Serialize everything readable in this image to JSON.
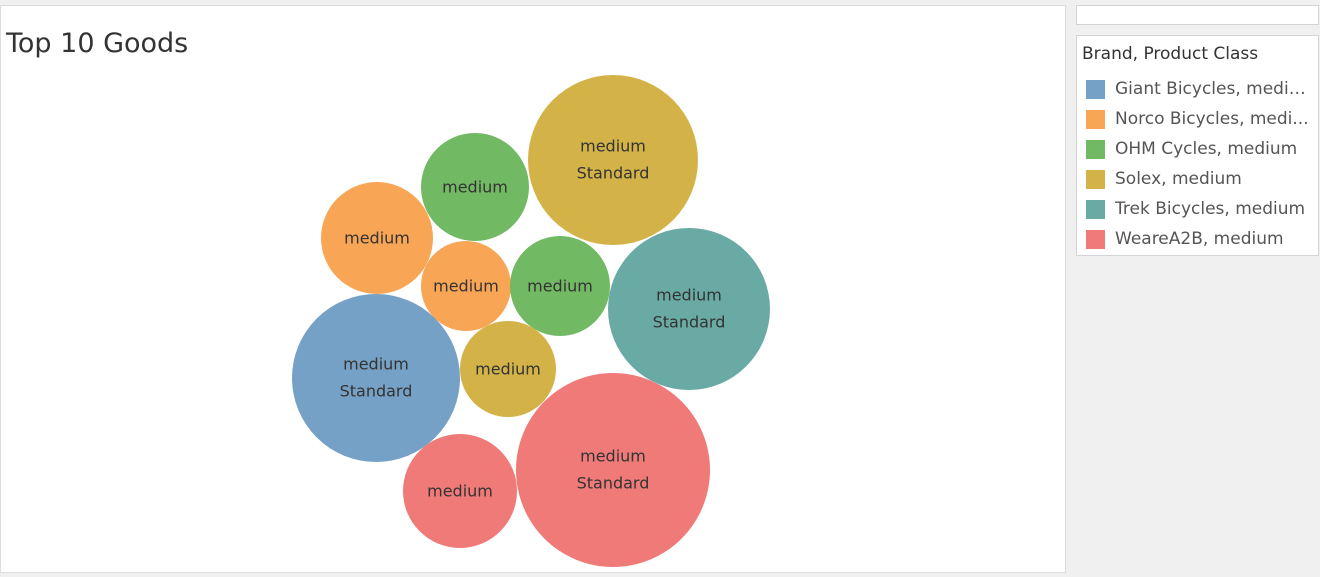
{
  "chart_data": {
    "type": "bubble",
    "title": "Top 10 Goods",
    "legend": {
      "title": "Brand, Product Class",
      "placement": "right",
      "items": [
        {
          "label": "Giant Bicycles, medium",
          "display": "Giant Bicycles, mediu...",
          "color": "#76a1c6"
        },
        {
          "label": "Norco Bicycles, medium",
          "display": "Norco Bicycles, medi...",
          "color": "#f8a555"
        },
        {
          "label": "OHM Cycles, medium",
          "display": "OHM Cycles, medium",
          "color": "#72b963"
        },
        {
          "label": "Solex, medium",
          "display": "Solex, medium",
          "color": "#d3b348"
        },
        {
          "label": "Trek Bicycles, medium",
          "display": "Trek Bicycles, medium",
          "color": "#69aaa5"
        },
        {
          "label": "WeareA2B, medium",
          "display": "WeareA2B, medium",
          "color": "#ef7a78"
        }
      ]
    },
    "bubbles": [
      {
        "brand": "Solex",
        "class": "medium",
        "line": "Standard",
        "size": 85
      },
      {
        "brand": "OHM Cycles",
        "class": "medium",
        "line": "",
        "size": 54
      },
      {
        "brand": "Norco Bicycles",
        "class": "medium",
        "line": "",
        "size": 56
      },
      {
        "brand": "Norco Bicycles",
        "class": "medium",
        "line": "",
        "size": 45
      },
      {
        "brand": "OHM Cycles",
        "class": "medium",
        "line": "",
        "size": 50
      },
      {
        "brand": "Trek Bicycles",
        "class": "medium",
        "line": "Standard",
        "size": 81
      },
      {
        "brand": "Giant Bicycles",
        "class": "medium",
        "line": "Standard",
        "size": 84
      },
      {
        "brand": "Solex",
        "class": "medium",
        "line": "",
        "size": 48
      },
      {
        "brand": "WeareA2B",
        "class": "medium",
        "line": "Standard",
        "size": 97
      },
      {
        "brand": "WeareA2B",
        "class": "medium",
        "line": "",
        "size": 57
      }
    ]
  }
}
